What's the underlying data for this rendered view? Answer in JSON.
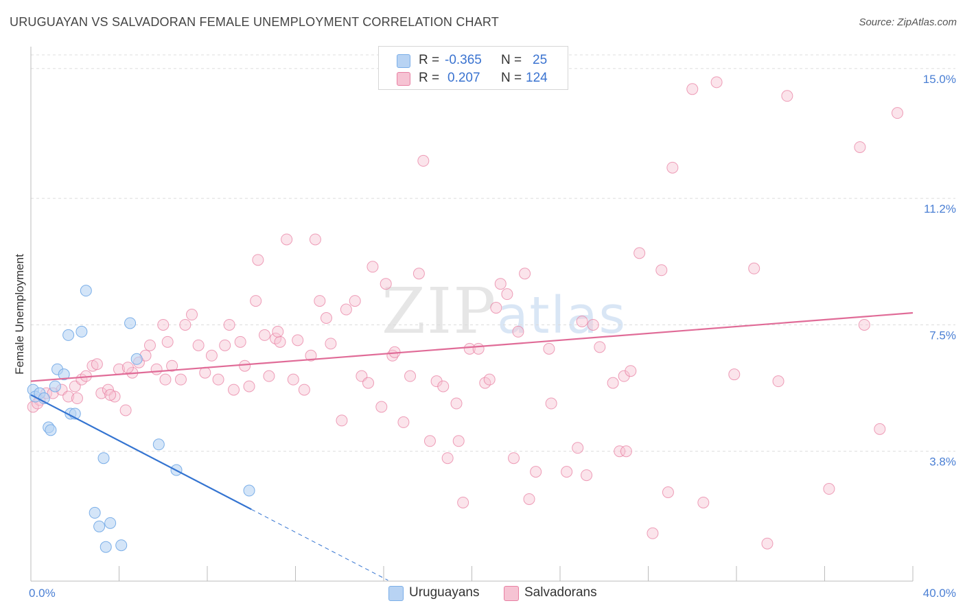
{
  "chart_data": {
    "type": "scatter",
    "title": "URUGUAYAN VS SALVADORAN FEMALE UNEMPLOYMENT CORRELATION CHART",
    "source": "Source: ZipAtlas.com",
    "xlabel": "",
    "ylabel": "Female Unemployment",
    "xlim": [
      0,
      40
    ],
    "ylim": [
      0,
      15.4
    ],
    "x_tick_labels": [
      "0.0%",
      "40.0%"
    ],
    "y_ticks": [
      {
        "value": 3.8,
        "label": "3.8%"
      },
      {
        "value": 7.5,
        "label": "7.5%"
      },
      {
        "value": 11.2,
        "label": "11.2%"
      },
      {
        "value": 15.0,
        "label": "15.0%"
      }
    ],
    "watermark": {
      "zip": "ZIP",
      "atlas": "atlas"
    },
    "legend": {
      "rows": [
        {
          "r_label": "R =",
          "r_value": "-0.365",
          "n_label": "N =",
          "n_value": "25"
        },
        {
          "r_label": "R =",
          "r_value": "0.207",
          "n_label": "N =",
          "n_value": "124"
        }
      ]
    },
    "series": [
      {
        "name": "Uruguayans",
        "color": "#7aaee8",
        "fill": "#b8d3f3",
        "trend": {
          "x0": 0.0,
          "y0": 5.45,
          "x1": 10.0,
          "y1": 2.1,
          "dash_to_x": 16.2
        },
        "points": [
          [
            0.1,
            5.6
          ],
          [
            0.2,
            5.4
          ],
          [
            0.4,
            5.5
          ],
          [
            0.6,
            5.35
          ],
          [
            1.2,
            6.2
          ],
          [
            1.5,
            6.05
          ],
          [
            0.8,
            4.5
          ],
          [
            0.9,
            4.42
          ],
          [
            1.8,
            4.9
          ],
          [
            2.0,
            4.9
          ],
          [
            1.7,
            7.2
          ],
          [
            2.3,
            7.3
          ],
          [
            2.5,
            8.5
          ],
          [
            3.3,
            3.6
          ],
          [
            4.5,
            7.55
          ],
          [
            4.8,
            6.5
          ],
          [
            5.8,
            4.0
          ],
          [
            6.6,
            3.25
          ],
          [
            9.9,
            2.65
          ],
          [
            2.9,
            2.0
          ],
          [
            3.1,
            1.6
          ],
          [
            3.6,
            1.7
          ],
          [
            3.4,
            1.0
          ],
          [
            4.1,
            1.05
          ],
          [
            1.1,
            5.7
          ]
        ]
      },
      {
        "name": "Salvadorans",
        "color": "#e87fa2",
        "fill": "#f6c3d3",
        "trend": {
          "x0": 0.0,
          "y0": 5.85,
          "x1": 40.0,
          "y1": 7.85
        },
        "points": [
          [
            0.1,
            5.1
          ],
          [
            0.4,
            5.3
          ],
          [
            0.7,
            5.5
          ],
          [
            1.0,
            5.5
          ],
          [
            1.4,
            5.6
          ],
          [
            1.7,
            5.4
          ],
          [
            2.0,
            5.7
          ],
          [
            2.3,
            5.9
          ],
          [
            2.5,
            6.0
          ],
          [
            2.8,
            6.3
          ],
          [
            3.0,
            6.35
          ],
          [
            3.2,
            5.5
          ],
          [
            3.5,
            5.6
          ],
          [
            3.8,
            5.4
          ],
          [
            4.0,
            6.2
          ],
          [
            4.3,
            5.0
          ],
          [
            4.6,
            6.1
          ],
          [
            4.9,
            6.4
          ],
          [
            5.2,
            6.6
          ],
          [
            5.4,
            6.9
          ],
          [
            5.7,
            6.2
          ],
          [
            6.0,
            7.5
          ],
          [
            6.2,
            7.0
          ],
          [
            6.4,
            6.3
          ],
          [
            6.8,
            5.9
          ],
          [
            7.0,
            7.5
          ],
          [
            7.3,
            7.8
          ],
          [
            7.6,
            6.9
          ],
          [
            7.9,
            6.1
          ],
          [
            8.2,
            6.6
          ],
          [
            8.5,
            5.9
          ],
          [
            8.8,
            6.9
          ],
          [
            9.0,
            7.5
          ],
          [
            9.2,
            5.6
          ],
          [
            9.5,
            7.0
          ],
          [
            9.7,
            6.3
          ],
          [
            9.9,
            5.7
          ],
          [
            10.2,
            8.2
          ],
          [
            10.3,
            9.4
          ],
          [
            10.6,
            7.2
          ],
          [
            10.8,
            6.0
          ],
          [
            11.1,
            7.1
          ],
          [
            11.3,
            7.0
          ],
          [
            11.6,
            10.0
          ],
          [
            11.9,
            5.9
          ],
          [
            12.1,
            7.05
          ],
          [
            12.4,
            5.6
          ],
          [
            12.7,
            6.6
          ],
          [
            12.9,
            10.0
          ],
          [
            13.1,
            8.2
          ],
          [
            13.4,
            7.7
          ],
          [
            13.6,
            6.95
          ],
          [
            14.1,
            4.7
          ],
          [
            14.3,
            7.95
          ],
          [
            14.7,
            8.2
          ],
          [
            15.0,
            6.0
          ],
          [
            15.3,
            5.8
          ],
          [
            15.5,
            9.2
          ],
          [
            15.9,
            5.1
          ],
          [
            16.1,
            8.7
          ],
          [
            16.4,
            6.6
          ],
          [
            16.9,
            4.65
          ],
          [
            17.2,
            6.0
          ],
          [
            17.6,
            9.0
          ],
          [
            17.8,
            12.3
          ],
          [
            18.1,
            4.1
          ],
          [
            18.4,
            5.85
          ],
          [
            18.9,
            3.6
          ],
          [
            19.3,
            5.2
          ],
          [
            19.4,
            4.1
          ],
          [
            19.6,
            2.3
          ],
          [
            19.9,
            6.8
          ],
          [
            20.3,
            6.8
          ],
          [
            20.6,
            5.8
          ],
          [
            20.8,
            5.9
          ],
          [
            21.1,
            8.0
          ],
          [
            21.3,
            8.7
          ],
          [
            21.6,
            8.4
          ],
          [
            21.9,
            3.6
          ],
          [
            22.1,
            7.3
          ],
          [
            22.4,
            9.0
          ],
          [
            22.6,
            2.4
          ],
          [
            22.9,
            3.2
          ],
          [
            23.5,
            6.8
          ],
          [
            23.6,
            5.2
          ],
          [
            24.3,
            3.2
          ],
          [
            24.8,
            3.9
          ],
          [
            25.0,
            7.6
          ],
          [
            25.2,
            3.1
          ],
          [
            25.5,
            7.5
          ],
          [
            25.8,
            6.85
          ],
          [
            26.4,
            5.8
          ],
          [
            26.9,
            6.0
          ],
          [
            26.7,
            3.8
          ],
          [
            27.2,
            6.15
          ],
          [
            27.0,
            3.8
          ],
          [
            27.6,
            9.6
          ],
          [
            28.2,
            1.4
          ],
          [
            28.6,
            9.1
          ],
          [
            28.9,
            2.6
          ],
          [
            29.1,
            12.1
          ],
          [
            30.0,
            14.4
          ],
          [
            30.5,
            2.3
          ],
          [
            31.1,
            14.6
          ],
          [
            31.9,
            6.05
          ],
          [
            32.8,
            9.15
          ],
          [
            33.4,
            1.1
          ],
          [
            33.9,
            5.85
          ],
          [
            34.3,
            14.2
          ],
          [
            36.2,
            2.7
          ],
          [
            37.6,
            12.7
          ],
          [
            37.8,
            7.5
          ],
          [
            38.5,
            4.45
          ],
          [
            39.3,
            13.7
          ],
          [
            16.5,
            6.7
          ],
          [
            18.7,
            5.7
          ],
          [
            11.2,
            7.3
          ],
          [
            6.1,
            5.9
          ],
          [
            4.4,
            6.25
          ],
          [
            3.6,
            5.45
          ],
          [
            0.3,
            5.2
          ],
          [
            2.1,
            5.35
          ]
        ]
      }
    ]
  }
}
